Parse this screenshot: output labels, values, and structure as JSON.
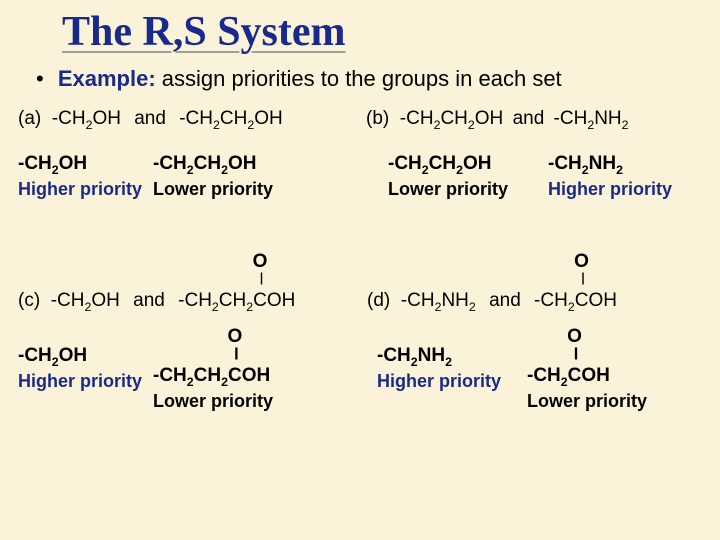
{
  "title": "The R,S System",
  "example_label": "Example:",
  "example_text": "assign priorities to the groups in each set",
  "and": "and",
  "higher": "Higher priority",
  "lower": "Lower priority",
  "colors": {
    "background": "#fbf3d9",
    "title": "#1a2a8a",
    "accent": "#1a2a8a",
    "text": "#000000"
  },
  "sets": {
    "a": {
      "label": "(a)",
      "g1_html": "-CH<sub>2</sub>OH",
      "g2_html": "-CH<sub>2</sub>CH<sub>2</sub>OH",
      "ans1_html": "-CH<sub>2</sub>OH",
      "ans1_priority": "higher",
      "ans2_html": "-CH<sub>2</sub>CH<sub>2</sub>OH",
      "ans2_priority": "lower"
    },
    "b": {
      "label": "(b)",
      "g1_html": "-CH<sub>2</sub>CH<sub>2</sub>OH",
      "g2_html": "-CH<sub>2</sub>NH<sub>2</sub>",
      "ans1_html": "-CH<sub>2</sub>CH<sub>2</sub>OH",
      "ans1_priority": "lower",
      "ans2_html": "-CH<sub>2</sub>NH<sub>2</sub>",
      "ans2_priority": "higher"
    },
    "c": {
      "label": "(c)",
      "g1_html": "-CH<sub>2</sub>OH",
      "g2_carbonyl": true,
      "g2_pre_html": "-CH<sub>2</sub>CH<sub>2</sub>",
      "g2_post_html": "OH",
      "ans1_html": "-CH<sub>2</sub>OH",
      "ans1_priority": "higher",
      "ans2_carbonyl": true,
      "ans2_pre_html": "-CH<sub>2</sub>CH<sub>2</sub>",
      "ans2_post_html": "OH",
      "ans2_priority": "lower"
    },
    "d": {
      "label": "(d)",
      "g1_html": "-CH<sub>2</sub>NH<sub>2</sub>",
      "g2_carbonyl": true,
      "g2_pre_html": "-CH<sub>2</sub>",
      "g2_post_html": "OH",
      "ans1_html": "-CH<sub>2</sub>NH<sub>2</sub>",
      "ans1_priority": "higher",
      "ans2_carbonyl": true,
      "ans2_pre_html": "-CH<sub>2</sub>",
      "ans2_post_html": "OH",
      "ans2_priority": "lower"
    }
  }
}
